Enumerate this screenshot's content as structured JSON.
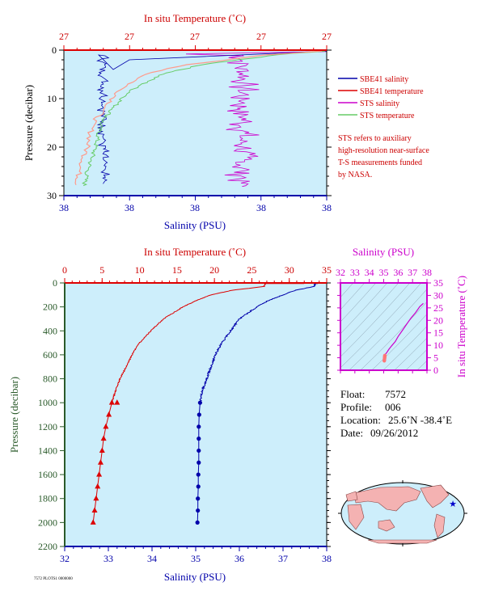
{
  "colors": {
    "panel_bg": "#cdeefb",
    "red": "#dd0000",
    "blue": "#0000aa",
    "magenta": "#cc00cc",
    "green": "#66cc66",
    "salmon": "#ff9a8a",
    "dark_green": "#2a5a2a"
  },
  "chart_data": [
    {
      "id": "top-panel",
      "type": "line",
      "title_top": "In situ Temperature (˚C)",
      "top_tick_labels": [
        "27",
        "27",
        "27",
        "27",
        "27"
      ],
      "xlabel": "Salinity (PSU)",
      "bottom_tick_labels": [
        "38",
        "38",
        "38",
        "38",
        "38"
      ],
      "ylabel": "Pressure (decibar)",
      "y_tick_labels": [
        "0",
        "10",
        "20",
        "30"
      ],
      "ylim": [
        0,
        30
      ],
      "y_reversed": true,
      "grid": false,
      "legend_position": "right",
      "series": [
        {
          "name": "SBE41 salinity",
          "color": "#0000aa"
        },
        {
          "name": "SBE41 temperature",
          "color": "#dd0000"
        },
        {
          "name": "STS salinity",
          "color": "#cc00cc"
        },
        {
          "name": "STS temperature",
          "color": "#66cc66"
        }
      ],
      "note": [
        "STS refers to auxiliary",
        "high-resolution near-surface",
        "T-S measurements funded",
        "by NASA."
      ]
    },
    {
      "id": "main-profile",
      "type": "line",
      "title_top": "In situ Temperature (˚C)",
      "temp_xlim": [
        0,
        35
      ],
      "top_ticks": [
        0,
        5,
        10,
        15,
        20,
        25,
        30,
        35
      ],
      "xlabel": "Salinity (PSU)",
      "sal_xlim": [
        32,
        38
      ],
      "bottom_ticks": [
        32,
        33,
        34,
        35,
        36,
        37,
        38
      ],
      "ylabel": "Pressure (decibar)",
      "ylim": [
        0,
        2200
      ],
      "y_ticks": [
        0,
        200,
        400,
        600,
        800,
        1000,
        1200,
        1400,
        1600,
        1800,
        2000,
        2200
      ],
      "y_reversed": true,
      "grid": false,
      "series": [
        {
          "name": "temperature",
          "color": "#dd0000",
          "pressure": [
            5,
            30,
            60,
            100,
            150,
            200,
            250,
            300,
            400,
            500,
            600,
            700,
            800,
            900,
            1000
          ],
          "values": [
            26.8,
            26.6,
            22.5,
            19.5,
            17.5,
            15.8,
            14.5,
            13.2,
            11.5,
            10.0,
            9.0,
            8.2,
            7.4,
            6.8,
            6.3
          ],
          "discrete_pressure": [
            1000,
            1100,
            1200,
            1300,
            1400,
            1500,
            1600,
            1700,
            1800,
            1900,
            2000
          ],
          "discrete_values": [
            6.3,
            5.9,
            5.5,
            5.2,
            5.0,
            4.8,
            4.6,
            4.4,
            4.2,
            4.0,
            3.8
          ],
          "marker": "triangle"
        },
        {
          "name": "salinity",
          "color": "#0000aa",
          "pressure": [
            5,
            30,
            60,
            100,
            150,
            200,
            250,
            300,
            400,
            500,
            600,
            700,
            800,
            900,
            1000
          ],
          "values": [
            37.75,
            37.7,
            37.3,
            37.0,
            36.65,
            36.4,
            36.2,
            36.0,
            35.8,
            35.6,
            35.45,
            35.35,
            35.25,
            35.15,
            35.1
          ],
          "discrete_pressure": [
            1000,
            1100,
            1200,
            1300,
            1400,
            1500,
            1600,
            1700,
            1800,
            1900,
            2000
          ],
          "discrete_values": [
            35.1,
            35.08,
            35.07,
            35.07,
            35.07,
            35.07,
            35.06,
            35.06,
            35.05,
            35.05,
            35.04
          ],
          "marker": "circle"
        }
      ],
      "footer_code": "7572 PLOTS1 0000000"
    },
    {
      "id": "ts-diagram",
      "type": "scatter",
      "title_top": "Salinity (PSU)",
      "xlim": [
        32,
        38
      ],
      "x_ticks": [
        32,
        33,
        34,
        35,
        36,
        37,
        38
      ],
      "ylabel": "In situ Temperature (˚C)",
      "ylim": [
        0,
        35
      ],
      "y_ticks": [
        0,
        5,
        10,
        15,
        20,
        25,
        30,
        35
      ],
      "points": [
        [
          37.75,
          26.8
        ],
        [
          37.5,
          25.5
        ],
        [
          37.2,
          23.0
        ],
        [
          36.9,
          21.0
        ],
        [
          36.6,
          18.5
        ],
        [
          36.3,
          16.0
        ],
        [
          36.0,
          13.5
        ],
        [
          35.8,
          11.5
        ],
        [
          35.55,
          9.8
        ],
        [
          35.35,
          8.3
        ],
        [
          35.2,
          7.0
        ],
        [
          35.1,
          6.3
        ],
        [
          35.08,
          5.9
        ],
        [
          35.07,
          5.5
        ],
        [
          35.07,
          5.2
        ],
        [
          35.06,
          4.8
        ],
        [
          35.05,
          4.2
        ],
        [
          35.04,
          3.8
        ]
      ]
    }
  ],
  "info": {
    "float_label": "Float:",
    "float_value": "7572",
    "profile_label": "Profile:",
    "profile_value": "006",
    "location_label": "Location:",
    "location_value": "25.6˚N  -38.4˚E",
    "date_label": "Date:",
    "date_value": "09/26/2012"
  },
  "map": {
    "marker_icon": "star-icon",
    "float_lat": 25.6,
    "float_lon": -38.4
  }
}
